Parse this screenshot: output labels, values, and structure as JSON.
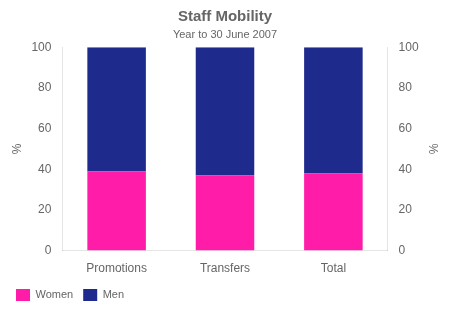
{
  "chart_data": {
    "type": "bar",
    "title": "Staff Mobility",
    "subtitle": "Year to 30 June 2007",
    "categories": [
      "Promotions",
      "Transfers",
      "Total"
    ],
    "series": [
      {
        "name": "Women",
        "color": "#FF1CA8",
        "values": [
          39,
          37,
          38
        ]
      },
      {
        "name": "Men",
        "color": "#1e2b8c",
        "values": [
          61,
          63,
          62
        ]
      }
    ],
    "stacked": true,
    "ylabel": "%",
    "y2label": "%",
    "ylim": [
      0,
      100
    ],
    "yticks": [
      0,
      20,
      40,
      60,
      80,
      100
    ],
    "y2lim": [
      0,
      100
    ],
    "y2ticks": [
      0,
      20,
      40,
      60,
      80,
      100
    ],
    "grid": false,
    "legend": "lower left"
  }
}
